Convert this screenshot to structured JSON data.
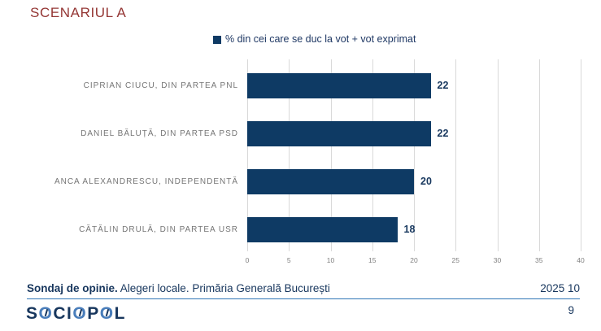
{
  "title": "SCENARIUL A",
  "legend": {
    "label": "% din cei care se duc la vot + vot exprimat",
    "color": "#0e3a64"
  },
  "chart_data": {
    "type": "bar",
    "orientation": "horizontal",
    "title": "SCENARIUL A",
    "series_name": "% din cei care se duc la vot + vot exprimat",
    "categories": [
      "CIPRIAN CIUCU, DIN PARTEA PNL",
      "DANIEL BĂLUȚĂ, DIN PARTEA PSD",
      "ANCA ALEXANDRESCU, INDEPENDENTĂ",
      "CĂTĂLIN DRULĂ, DIN PARTEA USR"
    ],
    "values": [
      22,
      22,
      20,
      18
    ],
    "xlim": [
      0,
      40
    ],
    "xticks": [
      0,
      5,
      10,
      15,
      20,
      25,
      30,
      35,
      40
    ],
    "grid": true,
    "bar_color": "#0e3a64",
    "value_label_color": "#17375e"
  },
  "footer": {
    "note_bold": "Sondaj de opinie.",
    "note_rest": " Alegeri locale. Primăria Generală București",
    "date": "2025 10",
    "logo": "SOCIOPOL",
    "page_number": "9"
  }
}
